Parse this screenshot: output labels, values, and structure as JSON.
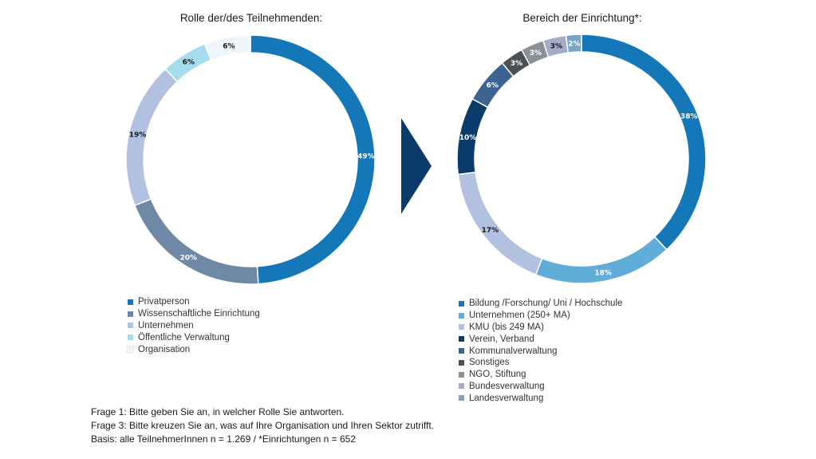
{
  "footnotes": [
    "Frage 1: Bitte geben Sie an, in welcher Rolle Sie antworten.",
    "Frage 3: Bitte kreuzen Sie an, was auf Ihre Organisation und Ihren Sektor zutrifft.",
    "Basis: alle TeilnehmerInnen n = 1.269 / *Einrichtungen n = 652"
  ],
  "arrow_color": "#0b3b6b",
  "chart_data": [
    {
      "type": "pie",
      "variant": "donut",
      "title": "Rolle der/des Teilnehmenden:",
      "legend": "bottom-left",
      "categories": [
        "Privatperson",
        "Wissenschaftliche Einrichtung",
        "Unternehmen",
        "Öffentliche Verwaltung",
        "Organisation"
      ],
      "values": [
        49,
        20,
        19,
        6,
        6
      ],
      "labels": [
        "49%",
        "20%",
        "19%",
        "6%",
        "6%"
      ],
      "colors": [
        "#1478b8",
        "#6f88a6",
        "#b3c1e0",
        "#a6ddee",
        "#eef5fb"
      ]
    },
    {
      "type": "pie",
      "variant": "donut",
      "title": "Bereich der Einrichtung*:",
      "legend": "bottom-left",
      "categories": [
        "Bildung /Forschung/  Uni / Hochschule",
        "Unternehmen (250+ MA)",
        "KMU (bis 249 MA)",
        "Verein, Verband",
        "Kommunalverwaltung",
        "Sonstiges",
        "NGO, Stiftung",
        "Bundesverwaltung",
        "Landesverwaltung"
      ],
      "values": [
        38,
        18,
        17,
        10,
        6,
        3,
        3,
        3,
        2
      ],
      "labels": [
        "38%",
        "18%",
        "17%",
        "10%",
        "6%",
        "3%",
        "3%",
        "3%",
        "2%"
      ],
      "colors": [
        "#1478b8",
        "#5fadd8",
        "#b3c1e0",
        "#0b3b6b",
        "#3b6490",
        "#4a5157",
        "#8a9196",
        "#a6abc8",
        "#7aa4c6"
      ]
    }
  ]
}
